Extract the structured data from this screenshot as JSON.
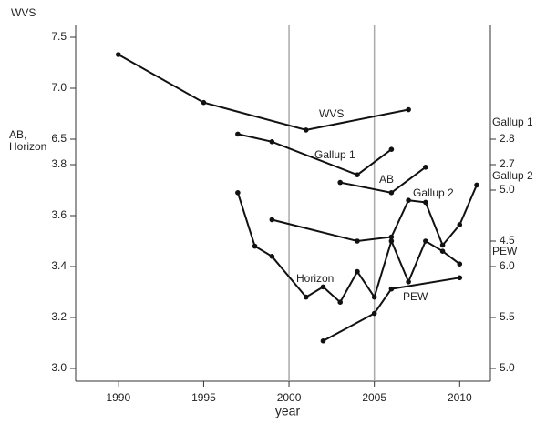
{
  "chart_data": {
    "type": "line",
    "x_label": "year",
    "xlim": [
      1987.5,
      2011.8
    ],
    "xticks": [
      1990,
      1995,
      2000,
      2005,
      2010
    ],
    "vlines": [
      2000,
      2005
    ],
    "axes": [
      {
        "side": "left",
        "title": "WVS",
        "ylim": [
          4.125,
          7.625
        ],
        "yticks": [
          7.5,
          {
            "value": 7,
            "label": "7.0"
          },
          6.5
        ]
      },
      {
        "side": "left",
        "title": "AB, Horizon",
        "ylim": [
          2.95,
          4.35
        ],
        "yticks": [
          3.8,
          3.6,
          3.4,
          3.2,
          {
            "value": 3,
            "label": "3.0"
          }
        ]
      },
      {
        "side": "right",
        "title": "Gallup 1",
        "ylim": [
          1.85,
          3.25
        ],
        "yticks": [
          2.8,
          2.7
        ]
      },
      {
        "side": "right",
        "title": "Gallup 2",
        "ylim": [
          3.125,
          6.625
        ],
        "yticks": [
          {
            "value": 5,
            "label": "5.0"
          },
          4.5
        ]
      },
      {
        "side": "right",
        "title": "PEW",
        "ylim": [
          4.875,
          8.375
        ],
        "yticks": [
          {
            "value": 6,
            "label": "6.0"
          },
          5.5,
          {
            "value": 5,
            "label": "5.0"
          }
        ]
      }
    ],
    "series": [
      {
        "name": "WVS",
        "axis": 0,
        "color": "#111",
        "x": [
          1990,
          1995,
          2001,
          2007
        ],
        "values": [
          7.33,
          6.86,
          6.59,
          6.79
        ]
      },
      {
        "name": "Gallup 1",
        "axis": 2,
        "color": "#111",
        "x": [
          1997,
          1999,
          2004,
          2006
        ],
        "values": [
          2.82,
          2.79,
          2.66,
          2.76
        ]
      },
      {
        "name": "AB",
        "axis": 1,
        "color": "#111",
        "x": [
          2003,
          2006,
          2008
        ],
        "values": [
          3.73,
          3.69,
          3.79
        ]
      },
      {
        "name": "Gallup 2",
        "axis": 3,
        "color": "#111",
        "x": [
          1999,
          2004,
          2006,
          2007,
          2008,
          2009,
          2010,
          2011
        ],
        "values": [
          4.71,
          4.5,
          4.54,
          4.9,
          4.88,
          4.46,
          4.66,
          5.05
        ]
      },
      {
        "name": "Horizon",
        "axis": 1,
        "color": "#111",
        "x": [
          1997,
          1998,
          1999,
          2001,
          2002,
          2003,
          2004,
          2005,
          2006,
          2007,
          2008,
          2009,
          2010
        ],
        "values": [
          3.69,
          3.48,
          3.44,
          3.28,
          3.32,
          3.26,
          3.38,
          3.28,
          3.5,
          3.34,
          3.5,
          3.46,
          3.41
        ]
      },
      {
        "name": "PEW",
        "axis": 4,
        "color": "#111",
        "x": [
          2002,
          2005,
          2006,
          2010
        ],
        "values": [
          5.27,
          5.54,
          5.78,
          5.89
        ]
      }
    ]
  }
}
